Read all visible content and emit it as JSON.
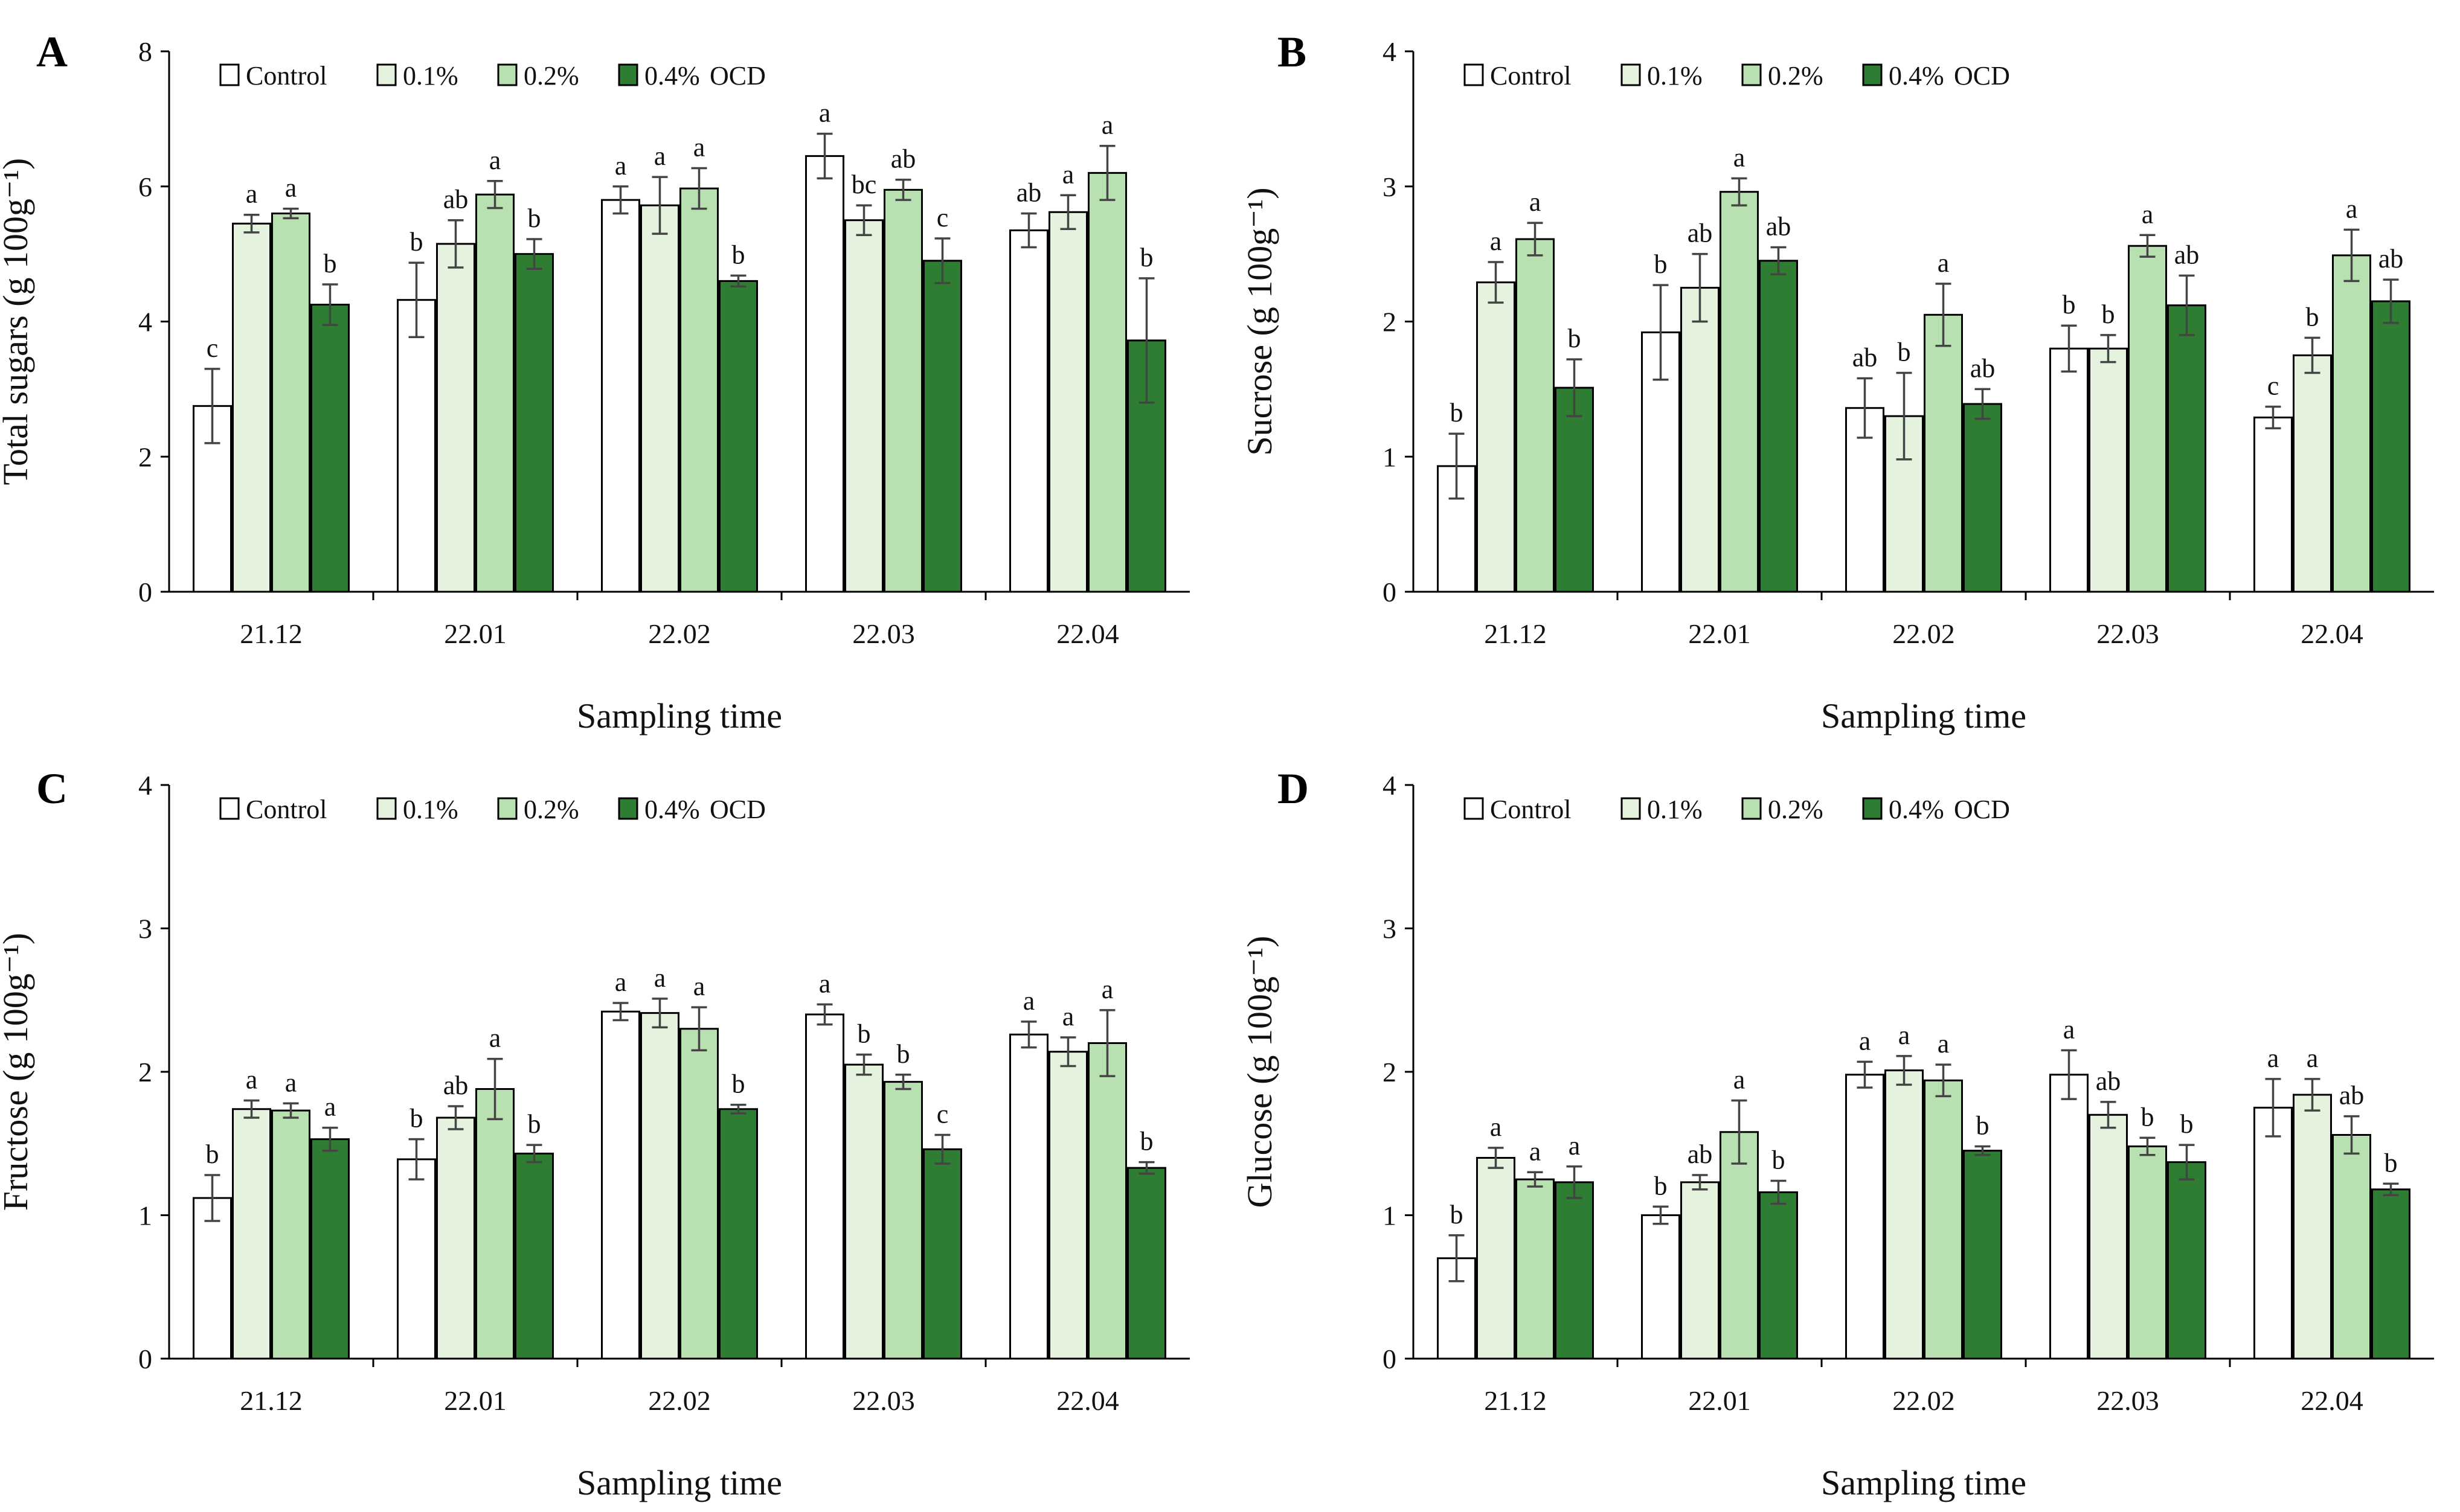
{
  "colors": {
    "control": "#ffffff",
    "c01": "#e4f2de",
    "c02": "#b9e0b0",
    "c04": "#2e7d32",
    "axis": "#000000",
    "error": "#444444"
  },
  "legend": {
    "labels": [
      "Control",
      "0.1%",
      "0.2%",
      "0.4%"
    ],
    "suffix": "OCD"
  },
  "chart_data": [
    {
      "type": "bar",
      "panel": "A",
      "ylabel": "Total sugars (g 100g⁻¹)",
      "xlabel": "Sampling time",
      "ylim": [
        0,
        8
      ],
      "yticks": [
        0,
        2,
        4,
        6,
        8
      ],
      "categories": [
        "21.12",
        "22.01",
        "22.02",
        "22.03",
        "22.04"
      ],
      "series": [
        {
          "name": "Control",
          "values": [
            2.75,
            4.32,
            5.8,
            6.45,
            5.35
          ],
          "errors": [
            0.55,
            0.55,
            0.2,
            0.33,
            0.25
          ],
          "letters": [
            "c",
            "b",
            "a",
            "a",
            "ab"
          ]
        },
        {
          "name": "0.1%",
          "values": [
            5.45,
            5.15,
            5.72,
            5.5,
            5.62
          ],
          "errors": [
            0.13,
            0.35,
            0.42,
            0.22,
            0.25
          ],
          "letters": [
            "a",
            "ab",
            "a",
            "bc",
            "a"
          ]
        },
        {
          "name": "0.2%",
          "values": [
            5.6,
            5.88,
            5.97,
            5.95,
            6.2
          ],
          "errors": [
            0.07,
            0.2,
            0.3,
            0.15,
            0.4
          ],
          "letters": [
            "a",
            "a",
            "a",
            "ab",
            "a"
          ]
        },
        {
          "name": "0.4%",
          "values": [
            4.25,
            5.0,
            4.6,
            4.9,
            3.72
          ],
          "errors": [
            0.3,
            0.22,
            0.08,
            0.33,
            0.92
          ],
          "letters": [
            "b",
            "b",
            "b",
            "c",
            "b"
          ]
        }
      ]
    },
    {
      "type": "bar",
      "panel": "B",
      "ylabel": "Sucrose (g 100g⁻¹)",
      "xlabel": "Sampling time",
      "ylim": [
        0,
        4
      ],
      "yticks": [
        0,
        1,
        2,
        3,
        4
      ],
      "categories": [
        "21.12",
        "22.01",
        "22.02",
        "22.03",
        "22.04"
      ],
      "series": [
        {
          "name": "Control",
          "values": [
            0.93,
            1.92,
            1.36,
            1.8,
            1.29
          ],
          "errors": [
            0.24,
            0.35,
            0.22,
            0.17,
            0.08
          ],
          "letters": [
            "b",
            "b",
            "ab",
            "b",
            "c"
          ]
        },
        {
          "name": "0.1%",
          "values": [
            2.29,
            2.25,
            1.3,
            1.8,
            1.75
          ],
          "errors": [
            0.15,
            0.25,
            0.32,
            0.1,
            0.13
          ],
          "letters": [
            "a",
            "ab",
            "b",
            "b",
            "b"
          ]
        },
        {
          "name": "0.2%",
          "values": [
            2.61,
            2.96,
            2.05,
            2.56,
            2.49
          ],
          "errors": [
            0.12,
            0.1,
            0.23,
            0.08,
            0.19
          ],
          "letters": [
            "a",
            "a",
            "a",
            "a",
            "a"
          ]
        },
        {
          "name": "0.4%",
          "values": [
            1.51,
            2.45,
            1.39,
            2.12,
            2.15
          ],
          "errors": [
            0.21,
            0.1,
            0.11,
            0.22,
            0.16
          ],
          "letters": [
            "b",
            "ab",
            "ab",
            "ab",
            "ab"
          ]
        }
      ]
    },
    {
      "type": "bar",
      "panel": "C",
      "ylabel": "Fructose (g 100g⁻¹)",
      "xlabel": "Sampling time",
      "ylim": [
        0,
        4
      ],
      "yticks": [
        0,
        1,
        2,
        3,
        4
      ],
      "categories": [
        "21.12",
        "22.01",
        "22.02",
        "22.03",
        "22.04"
      ],
      "series": [
        {
          "name": "Control",
          "values": [
            1.12,
            1.39,
            2.42,
            2.4,
            2.26
          ],
          "errors": [
            0.16,
            0.14,
            0.06,
            0.07,
            0.09
          ],
          "letters": [
            "b",
            "b",
            "a",
            "a",
            "a"
          ]
        },
        {
          "name": "0.1%",
          "values": [
            1.74,
            1.68,
            2.41,
            2.05,
            2.14
          ],
          "errors": [
            0.06,
            0.08,
            0.1,
            0.07,
            0.1
          ],
          "letters": [
            "a",
            "ab",
            "a",
            "b",
            "a"
          ]
        },
        {
          "name": "0.2%",
          "values": [
            1.73,
            1.88,
            2.3,
            1.93,
            2.2
          ],
          "errors": [
            0.05,
            0.21,
            0.15,
            0.05,
            0.23
          ],
          "letters": [
            "a",
            "a",
            "a",
            "b",
            "a"
          ]
        },
        {
          "name": "0.4%",
          "values": [
            1.53,
            1.43,
            1.74,
            1.46,
            1.33
          ],
          "errors": [
            0.08,
            0.06,
            0.03,
            0.1,
            0.04
          ],
          "letters": [
            "a",
            "b",
            "b",
            "c",
            "b"
          ]
        }
      ]
    },
    {
      "type": "bar",
      "panel": "D",
      "ylabel": "Glucose (g 100g⁻¹)",
      "xlabel": "Sampling time",
      "ylim": [
        0,
        4
      ],
      "yticks": [
        0,
        1,
        2,
        3,
        4
      ],
      "categories": [
        "21.12",
        "22.01",
        "22.02",
        "22.03",
        "22.04"
      ],
      "series": [
        {
          "name": "Control",
          "values": [
            0.7,
            1.0,
            1.98,
            1.98,
            1.75
          ],
          "errors": [
            0.16,
            0.06,
            0.09,
            0.17,
            0.2
          ],
          "letters": [
            "b",
            "b",
            "a",
            "a",
            "a"
          ]
        },
        {
          "name": "0.1%",
          "values": [
            1.4,
            1.23,
            2.01,
            1.7,
            1.84
          ],
          "errors": [
            0.07,
            0.05,
            0.1,
            0.09,
            0.11
          ],
          "letters": [
            "a",
            "ab",
            "a",
            "ab",
            "a"
          ]
        },
        {
          "name": "0.2%",
          "values": [
            1.25,
            1.58,
            1.94,
            1.48,
            1.56
          ],
          "errors": [
            0.05,
            0.22,
            0.11,
            0.06,
            0.13
          ],
          "letters": [
            "a",
            "a",
            "a",
            "b",
            "ab"
          ]
        },
        {
          "name": "0.4%",
          "values": [
            1.23,
            1.16,
            1.45,
            1.37,
            1.18
          ],
          "errors": [
            0.11,
            0.08,
            0.03,
            0.12,
            0.04
          ],
          "letters": [
            "a",
            "b",
            "b",
            "b",
            "b"
          ]
        }
      ]
    }
  ]
}
